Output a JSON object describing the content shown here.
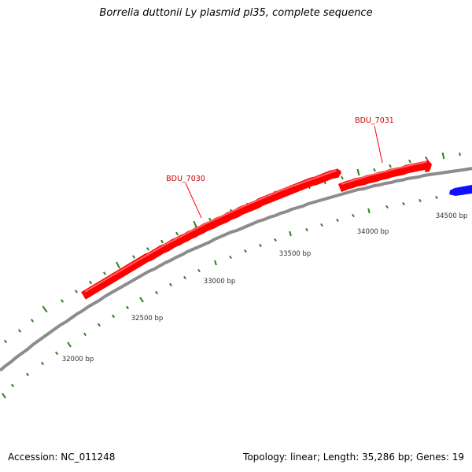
{
  "title": "Borrelia duttonii Ly plasmid pl35, complete sequence",
  "footer": {
    "accession": "Accession: NC_011248",
    "summary": "Topology: linear; Length: 35,286 bp; Genes: 19"
  },
  "colors": {
    "backbone": "#8c8c8c",
    "tick": "#2e7d1e",
    "tick_label": "#333333",
    "forward_gene": "#ff0000",
    "reverse_gene": "#1010ff",
    "gene_label": "#cc0000"
  },
  "scale": {
    "tick_labels": [
      "32000 bp",
      "32500 bp",
      "33000 bp",
      "33500 bp",
      "34000 bp",
      "34500 bp"
    ]
  },
  "genes": [
    {
      "label": "BDU_7030",
      "strand": "forward",
      "color": "#ff0000"
    },
    {
      "label": "BDU_7031",
      "strand": "forward",
      "color": "#ff0000"
    },
    {
      "label": "",
      "strand": "reverse",
      "color": "#1010ff"
    }
  ]
}
